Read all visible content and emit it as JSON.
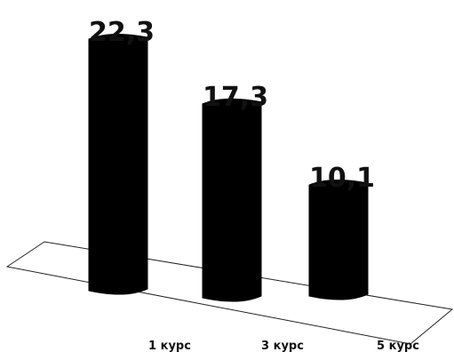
{
  "chart_data": {
    "type": "bar",
    "style": "3d-cylinder",
    "categories": [
      "1 курс",
      "3 курс",
      "5 курс"
    ],
    "values": [
      22.3,
      17.3,
      10.1
    ],
    "value_labels": [
      "22,3",
      "17,3",
      "10,1"
    ],
    "title": "",
    "xlabel": "",
    "ylabel": "",
    "ylim": [
      0,
      22.3
    ],
    "grid": false,
    "legend": "none",
    "bar_color": "#000000"
  }
}
